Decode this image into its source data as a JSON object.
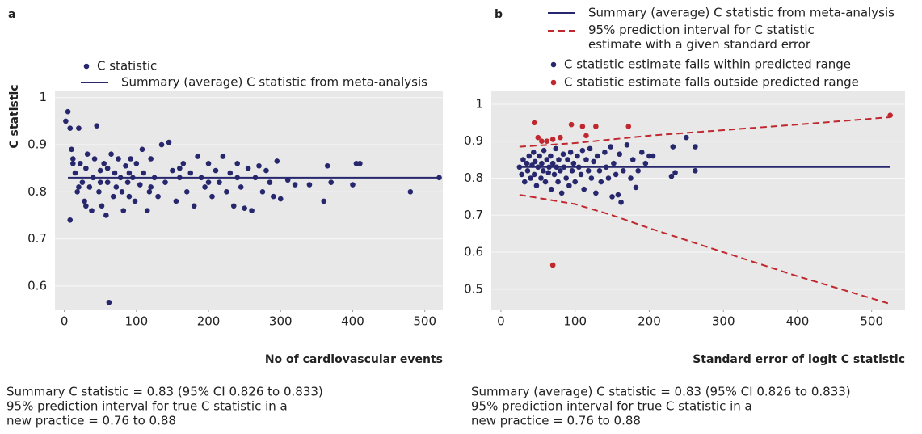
{
  "chart_data": [
    {
      "type": "scatter",
      "title": "a",
      "x_label": "No of cardiovascular events",
      "y_label": "C statistic",
      "xlim": [
        -13,
        525
      ],
      "ylim": [
        0.55,
        1.015
      ],
      "xticks": [
        0,
        100,
        200,
        300,
        400,
        500
      ],
      "yticks": [
        0.6,
        0.7,
        0.8,
        0.9,
        1
      ],
      "grid": true,
      "series": [
        {
          "name": "C statistic",
          "color": "#27276e",
          "mode": "markers",
          "x": [
            2,
            5,
            8,
            10,
            12,
            15,
            18,
            20,
            22,
            25,
            28,
            30,
            32,
            35,
            38,
            40,
            42,
            45,
            48,
            50,
            52,
            55,
            58,
            60,
            62,
            65,
            68,
            70,
            72,
            75,
            78,
            80,
            82,
            85,
            88,
            90,
            92,
            95,
            98,
            100,
            105,
            108,
            110,
            115,
            118,
            120,
            125,
            130,
            135,
            140,
            145,
            150,
            155,
            160,
            165,
            170,
            175,
            180,
            185,
            190,
            195,
            200,
            205,
            210,
            215,
            220,
            225,
            230,
            235,
            240,
            245,
            250,
            255,
            260,
            265,
            270,
            275,
            280,
            285,
            290,
            295,
            300,
            310,
            320,
            340,
            360,
            365,
            370,
            400,
            405,
            410,
            480,
            520,
            8,
            12,
            20,
            30,
            50,
            60,
            90,
            120,
            160,
            200,
            240
          ],
          "values": [
            0.95,
            0.97,
            0.935,
            0.89,
            0.87,
            0.84,
            0.8,
            0.935,
            0.86,
            0.82,
            0.78,
            0.85,
            0.88,
            0.81,
            0.76,
            0.83,
            0.87,
            0.94,
            0.8,
            0.845,
            0.77,
            0.86,
            0.75,
            0.82,
            0.565,
            0.88,
            0.79,
            0.84,
            0.81,
            0.87,
            0.83,
            0.8,
            0.76,
            0.855,
            0.82,
            0.79,
            0.87,
            0.83,
            0.78,
            0.86,
            0.815,
            0.89,
            0.84,
            0.76,
            0.8,
            0.87,
            0.83,
            0.79,
            0.9,
            0.82,
            0.905,
            0.845,
            0.78,
            0.83,
            0.86,
            0.8,
            0.84,
            0.77,
            0.875,
            0.83,
            0.81,
            0.86,
            0.79,
            0.845,
            0.82,
            0.875,
            0.8,
            0.84,
            0.77,
            0.86,
            0.81,
            0.765,
            0.85,
            0.76,
            0.83,
            0.855,
            0.8,
            0.845,
            0.82,
            0.79,
            0.865,
            0.785,
            0.825,
            0.815,
            0.815,
            0.78,
            0.855,
            0.82,
            0.815,
            0.86,
            0.86,
            0.8,
            0.83,
            0.74,
            0.86,
            0.81,
            0.77,
            0.82,
            0.85,
            0.84,
            0.81,
            0.85,
            0.82,
            0.83
          ]
        },
        {
          "name": "Summary (average) C statistic from meta-analysis",
          "color": "#27276e",
          "mode": "line",
          "x": [
            5,
            520
          ],
          "values": [
            0.83,
            0.83
          ]
        }
      ],
      "notes": [
        "Summary C statistic = 0.83 (95% CI 0.826 to 0.833)",
        "95% prediction interval for true C statistic in a",
        "new practice = 0.76 to 0.88"
      ]
    },
    {
      "type": "scatter",
      "title": "b",
      "x_label": "Standard error of logit C statistic",
      "xlim": [
        -13,
        545
      ],
      "ylim": [
        0.445,
        1.037
      ],
      "xticks": [
        0,
        100,
        200,
        300,
        400,
        500
      ],
      "yticks": [
        0.5,
        0.6,
        0.7,
        0.8,
        0.9,
        1
      ],
      "grid": true,
      "series": [
        {
          "name": "Summary (average) C statistic from meta-analysis",
          "color": "#27276e",
          "mode": "line",
          "x": [
            25,
            525
          ],
          "values": [
            0.83,
            0.83
          ]
        },
        {
          "name": "95% prediction interval for C statistic estimate with a given standard error",
          "color": "#c0282d",
          "mode": "dashed-band",
          "x": [
            25,
            100,
            150,
            200,
            300,
            400,
            525
          ],
          "values": [
            0.885,
            0.895,
            0.905,
            0.915,
            0.93,
            0.945,
            0.965
          ],
          "lower": [
            0.755,
            0.73,
            0.7,
            0.665,
            0.6,
            0.535,
            0.46
          ]
        },
        {
          "name": "C statistic estimate falls within predicted range",
          "color": "#27276e",
          "mode": "markers",
          "x": [
            25,
            28,
            30,
            32,
            35,
            36,
            38,
            40,
            42,
            44,
            45,
            46,
            48,
            50,
            52,
            54,
            55,
            57,
            58,
            60,
            62,
            64,
            65,
            67,
            68,
            70,
            72,
            74,
            75,
            77,
            78,
            80,
            82,
            84,
            85,
            88,
            90,
            92,
            94,
            96,
            98,
            100,
            103,
            105,
            108,
            110,
            112,
            115,
            118,
            120,
            122,
            125,
            128,
            130,
            133,
            135,
            140,
            142,
            145,
            148,
            150,
            152,
            155,
            158,
            160,
            162,
            165,
            170,
            175,
            178,
            182,
            185,
            190,
            195,
            200,
            205,
            230,
            232,
            235,
            250,
            262,
            262
          ],
          "values": [
            0.83,
            0.81,
            0.85,
            0.79,
            0.84,
            0.82,
            0.86,
            0.8,
            0.835,
            0.87,
            0.81,
            0.845,
            0.78,
            0.83,
            0.86,
            0.8,
            0.84,
            0.82,
            0.875,
            0.79,
            0.85,
            0.815,
            0.83,
            0.86,
            0.77,
            0.84,
            0.81,
            0.88,
            0.83,
            0.79,
            0.85,
            0.82,
            0.76,
            0.865,
            0.83,
            0.8,
            0.85,
            0.78,
            0.87,
            0.82,
            0.84,
            0.79,
            0.86,
            0.83,
            0.81,
            0.875,
            0.77,
            0.85,
            0.82,
            0.88,
            0.8,
            0.845,
            0.76,
            0.86,
            0.82,
            0.79,
            0.87,
            0.83,
            0.8,
            0.885,
            0.75,
            0.84,
            0.81,
            0.755,
            0.865,
            0.735,
            0.82,
            0.89,
            0.8,
            0.85,
            0.775,
            0.82,
            0.87,
            0.84,
            0.86,
            0.86,
            0.805,
            0.885,
            0.815,
            0.91,
            0.885,
            0.82
          ]
        },
        {
          "name": "C statistic estimate falls outside predicted range",
          "color": "#c0282d",
          "mode": "markers",
          "x": [
            45,
            50,
            55,
            62,
            70,
            80,
            95,
            110,
            115,
            128,
            172,
            525,
            70
          ],
          "values": [
            0.95,
            0.91,
            0.9,
            0.9,
            0.905,
            0.91,
            0.945,
            0.94,
            0.915,
            0.94,
            0.94,
            0.97,
            0.565
          ]
        }
      ],
      "notes": [
        "Summary (average) C statistic = 0.83 (95% CI 0.826 to 0.833)",
        "95% prediction interval for true C statistic in a",
        "new practice = 0.76 to 0.88"
      ]
    }
  ]
}
